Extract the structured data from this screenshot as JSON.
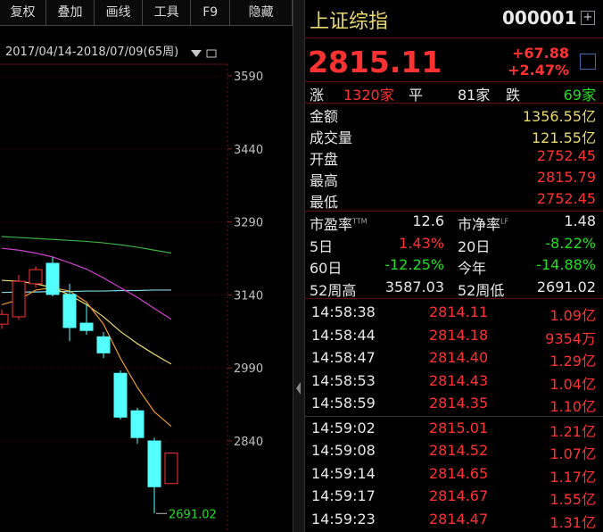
{
  "toolbar": {
    "buttons": [
      "复权",
      "叠加",
      "画线",
      "工具",
      "F9",
      "隐藏"
    ]
  },
  "chart_data": {
    "type": "candlestick",
    "header": "2017/04/14-2018/07/09(65周)",
    "ylim": [
      2653,
      3645
    ],
    "yticks": [
      3590,
      3440,
      3290,
      3140,
      2990,
      2840
    ],
    "grid": true,
    "up_color": "#ff3232",
    "down_color": "#54ffff",
    "candles": [
      {
        "open": 3080,
        "high": 3110,
        "low": 3070,
        "close": 3100
      },
      {
        "open": 3095,
        "high": 3181,
        "low": 3089,
        "close": 3168
      },
      {
        "open": 3163,
        "high": 3199,
        "low": 3155,
        "close": 3192
      },
      {
        "open": 3205,
        "high": 3218,
        "low": 3137,
        "close": 3141
      },
      {
        "open": 3141,
        "high": 3163,
        "low": 3045,
        "close": 3073
      },
      {
        "open": 3082,
        "high": 3122,
        "low": 3058,
        "close": 3067
      },
      {
        "open": 3054,
        "high": 3064,
        "low": 3010,
        "close": 3021
      },
      {
        "open": 2979,
        "high": 2985,
        "low": 2884,
        "close": 2889
      },
      {
        "open": 2902,
        "high": 2908,
        "low": 2834,
        "close": 2847
      },
      {
        "open": 2840,
        "high": 2847,
        "low": 2691.02,
        "close": 2746
      },
      {
        "open": 2752.45,
        "high": 2815.79,
        "low": 2752.45,
        "close": 2815.11
      }
    ],
    "series": [
      {
        "color": "#3cb043",
        "values": [
          3260,
          3258,
          3256,
          3254,
          3252,
          3250,
          3247,
          3243,
          3238,
          3232,
          3226
        ]
      },
      {
        "color": "#7fd8e0",
        "values": [
          3145,
          3146,
          3146,
          3147,
          3147,
          3148,
          3148,
          3149,
          3149,
          3150,
          3150
        ]
      },
      {
        "color": "#d040d0",
        "values": [
          3236,
          3232,
          3226,
          3218,
          3206,
          3193,
          3175,
          3155,
          3135,
          3112,
          3090
        ]
      },
      {
        "color": "#e8d870",
        "values": [
          3170,
          3168,
          3163,
          3155,
          3140,
          3120,
          3095,
          3065,
          3040,
          3018,
          2998
        ]
      },
      {
        "color": "#e89a30",
        "values": [
          3120,
          3130,
          3150,
          3155,
          3148,
          3125,
          3080,
          3010,
          2950,
          2900,
          2870
        ]
      }
    ],
    "low_annotation": 2691.02
  },
  "quote": {
    "name": "上证综指",
    "code": "000001",
    "price": "2815.11",
    "change": "+67.88",
    "change_pct": "+2.47%",
    "breadth": {
      "up_label": "涨",
      "up": "1320家",
      "flat_label": "平",
      "flat": "81家",
      "down_label": "跌",
      "down": "69家"
    },
    "rows": [
      [
        "金额",
        "1356.55亿"
      ],
      [
        "成交量",
        "121.55亿"
      ],
      [
        "开盘",
        "2752.45"
      ],
      [
        "最高",
        "2815.79"
      ],
      [
        "最低",
        "2752.45"
      ]
    ],
    "grid": [
      [
        {
          "label": "市盈率",
          "sup": "TTM",
          "value": "12.6"
        },
        {
          "label": "市净率",
          "sup": "LF",
          "value": "1.48"
        }
      ],
      [
        {
          "label": "5日",
          "value": "1.43%"
        },
        {
          "label": "20日",
          "value": "-8.22%"
        }
      ],
      [
        {
          "label": "60日",
          "value": "-12.25%"
        },
        {
          "label": "今年",
          "value": "-14.88%"
        }
      ],
      [
        {
          "label": "52周高",
          "value": "3587.03"
        },
        {
          "label": "52周低",
          "value": "2691.02"
        }
      ]
    ]
  },
  "trades": [
    [
      "14:58:38",
      "2814.11",
      "1.09亿"
    ],
    [
      "14:58:44",
      "2814.18",
      "9354万"
    ],
    [
      "14:58:47",
      "2814.40",
      "1.29亿"
    ],
    [
      "14:58:53",
      "2814.43",
      "1.04亿"
    ],
    [
      "14:58:59",
      "2814.35",
      "1.10亿"
    ],
    [
      "14:59:02",
      "2815.01",
      "1.21亿"
    ],
    [
      "14:59:08",
      "2814.52",
      "1.07亿"
    ],
    [
      "14:59:14",
      "2814.65",
      "1.17亿"
    ],
    [
      "14:59:17",
      "2814.67",
      "1.55亿"
    ],
    [
      "14:59:23",
      "2814.47",
      "1.31亿"
    ]
  ]
}
